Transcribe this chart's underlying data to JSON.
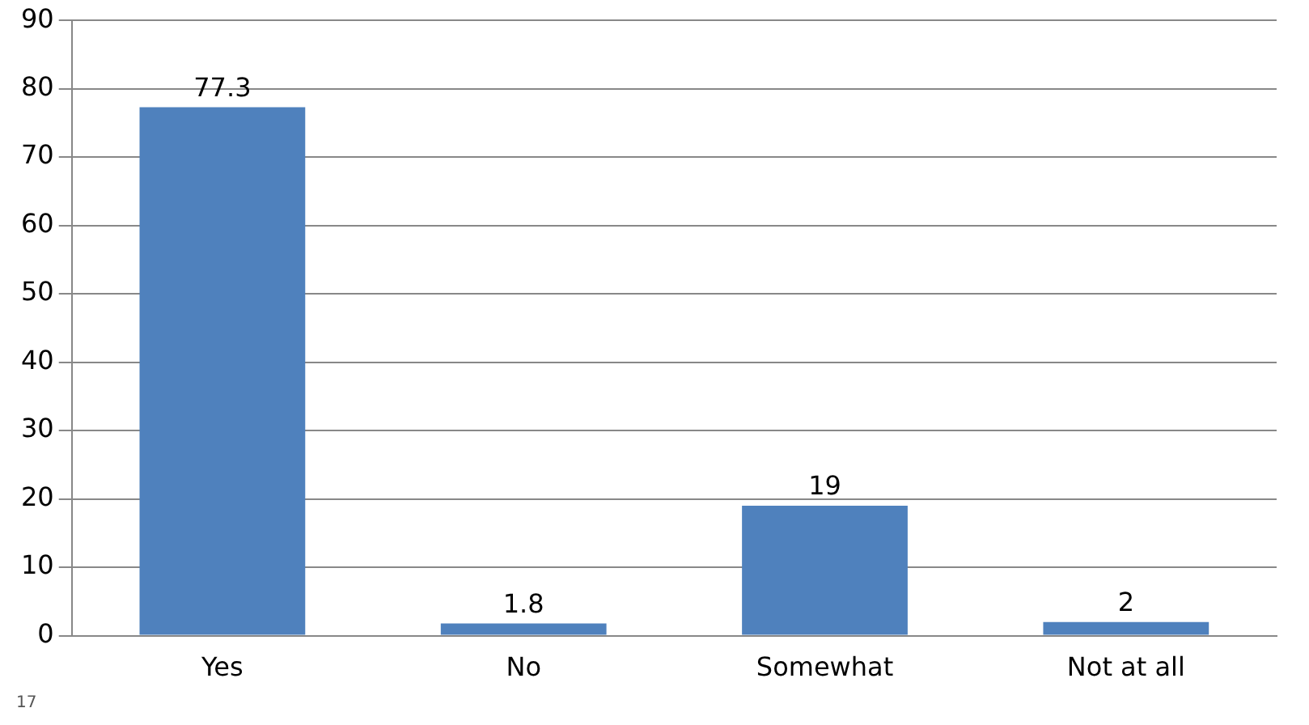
{
  "chart_data": {
    "type": "bar",
    "categories": [
      "Yes",
      "No",
      "Somewhat",
      "Not at all"
    ],
    "values": [
      77.3,
      1.8,
      19,
      2
    ],
    "color": "#4f81bd",
    "ylim": [
      0,
      90
    ],
    "yticks": [
      0,
      10,
      20,
      30,
      40,
      50,
      60,
      70,
      80,
      90
    ],
    "grid": "y",
    "data_labels": true,
    "legend": false,
    "annotations": [
      "17"
    ]
  }
}
